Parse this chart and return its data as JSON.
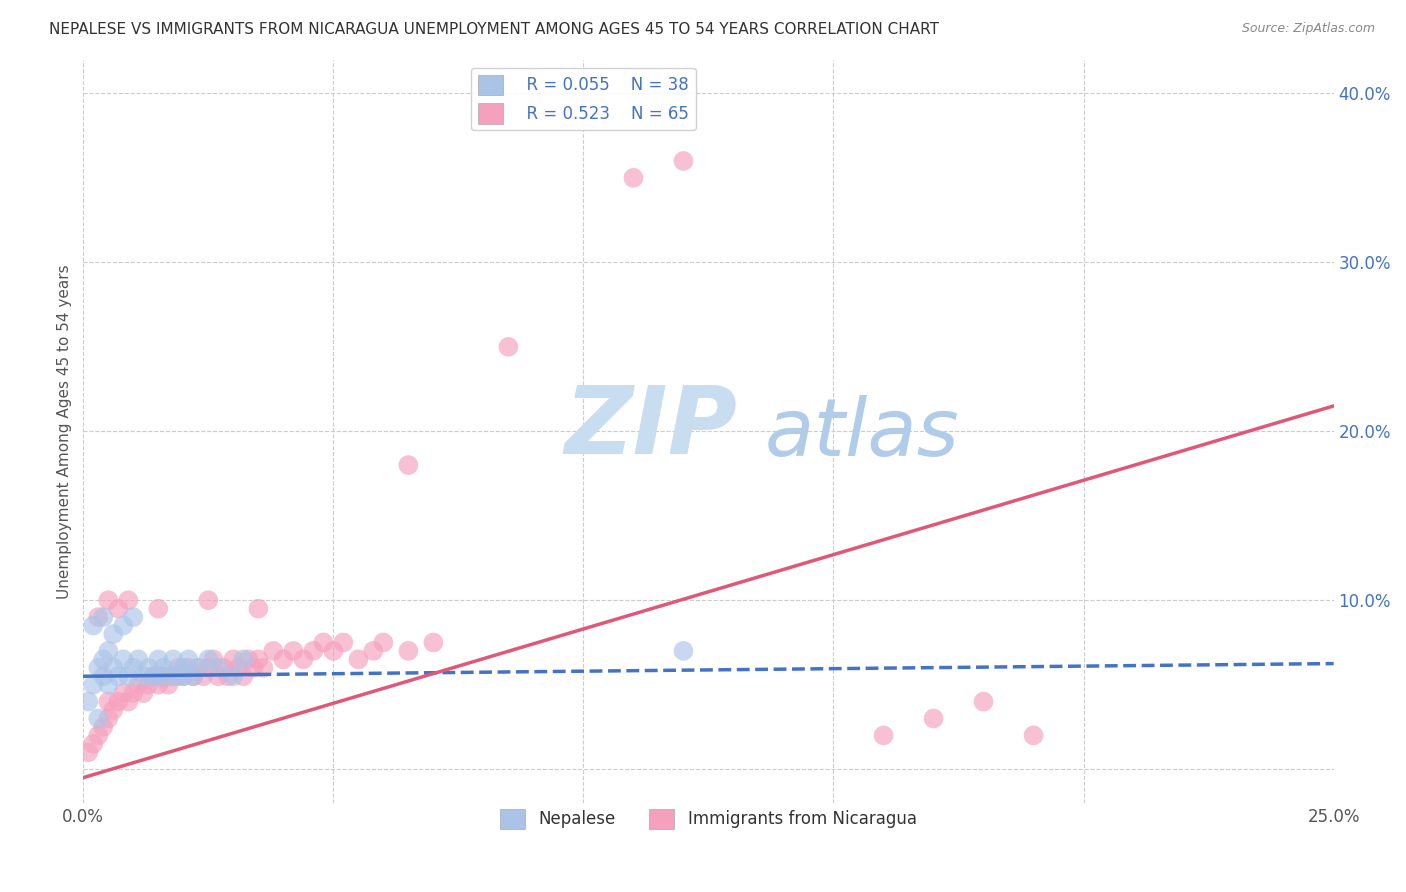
{
  "title": "NEPALESE VS IMMIGRANTS FROM NICARAGUA UNEMPLOYMENT AMONG AGES 45 TO 54 YEARS CORRELATION CHART",
  "source": "Source: ZipAtlas.com",
  "ylabel": "Unemployment Among Ages 45 to 54 years",
  "xlim": [
    0.0,
    0.25
  ],
  "ylim": [
    -0.02,
    0.42
  ],
  "legend_r1": "R = 0.055",
  "legend_n1": "N = 38",
  "legend_r2": "R = 0.523",
  "legend_n2": "N = 65",
  "nepalese_color": "#aac4e8",
  "nicaragua_color": "#f5a0bc",
  "nepalese_line_color": "#4472c4",
  "nicaragua_line_color": "#e05878",
  "watermark_zip": "ZIP",
  "watermark_atlas": "atlas",
  "watermark_color_zip": "#c8ddf0",
  "watermark_color_atlas": "#b0cce8",
  "background_color": "#ffffff",
  "grid_color": "#cccccc",
  "nepalese_line_m": 0.03,
  "nepalese_line_b": 0.055,
  "nicaragua_line_m": 0.88,
  "nicaragua_line_b": -0.005,
  "nepalese_x": [
    0.001,
    0.002,
    0.003,
    0.003,
    0.004,
    0.004,
    0.005,
    0.005,
    0.006,
    0.007,
    0.008,
    0.009,
    0.01,
    0.011,
    0.012,
    0.013,
    0.014,
    0.015,
    0.016,
    0.017,
    0.018,
    0.019,
    0.02,
    0.021,
    0.022,
    0.023,
    0.025,
    0.027,
    0.03,
    0.032,
    0.002,
    0.004,
    0.006,
    0.008,
    0.01,
    0.015,
    0.02,
    0.12
  ],
  "nepalese_y": [
    0.04,
    0.05,
    0.06,
    0.03,
    0.055,
    0.065,
    0.05,
    0.07,
    0.06,
    0.055,
    0.065,
    0.055,
    0.06,
    0.065,
    0.055,
    0.06,
    0.055,
    0.065,
    0.06,
    0.055,
    0.065,
    0.055,
    0.06,
    0.065,
    0.055,
    0.06,
    0.065,
    0.06,
    0.055,
    0.065,
    0.085,
    0.09,
    0.08,
    0.085,
    0.09,
    0.055,
    0.055,
    0.07
  ],
  "nicaragua_x": [
    0.001,
    0.002,
    0.003,
    0.004,
    0.005,
    0.005,
    0.006,
    0.007,
    0.008,
    0.009,
    0.01,
    0.011,
    0.012,
    0.013,
    0.014,
    0.015,
    0.016,
    0.017,
    0.018,
    0.019,
    0.02,
    0.021,
    0.022,
    0.023,
    0.024,
    0.025,
    0.026,
    0.027,
    0.028,
    0.029,
    0.03,
    0.031,
    0.032,
    0.033,
    0.034,
    0.035,
    0.036,
    0.038,
    0.04,
    0.042,
    0.044,
    0.046,
    0.048,
    0.05,
    0.052,
    0.055,
    0.058,
    0.06,
    0.065,
    0.07,
    0.003,
    0.005,
    0.007,
    0.009,
    0.015,
    0.025,
    0.035,
    0.065,
    0.085,
    0.11,
    0.12,
    0.16,
    0.17,
    0.18,
    0.19
  ],
  "nicaragua_y": [
    0.01,
    0.015,
    0.02,
    0.025,
    0.03,
    0.04,
    0.035,
    0.04,
    0.045,
    0.04,
    0.045,
    0.05,
    0.045,
    0.05,
    0.055,
    0.05,
    0.055,
    0.05,
    0.055,
    0.06,
    0.055,
    0.06,
    0.055,
    0.06,
    0.055,
    0.06,
    0.065,
    0.055,
    0.06,
    0.055,
    0.065,
    0.06,
    0.055,
    0.065,
    0.06,
    0.065,
    0.06,
    0.07,
    0.065,
    0.07,
    0.065,
    0.07,
    0.075,
    0.07,
    0.075,
    0.065,
    0.07,
    0.075,
    0.07,
    0.075,
    0.09,
    0.1,
    0.095,
    0.1,
    0.095,
    0.1,
    0.095,
    0.18,
    0.25,
    0.35,
    0.36,
    0.02,
    0.03,
    0.04,
    0.02
  ]
}
